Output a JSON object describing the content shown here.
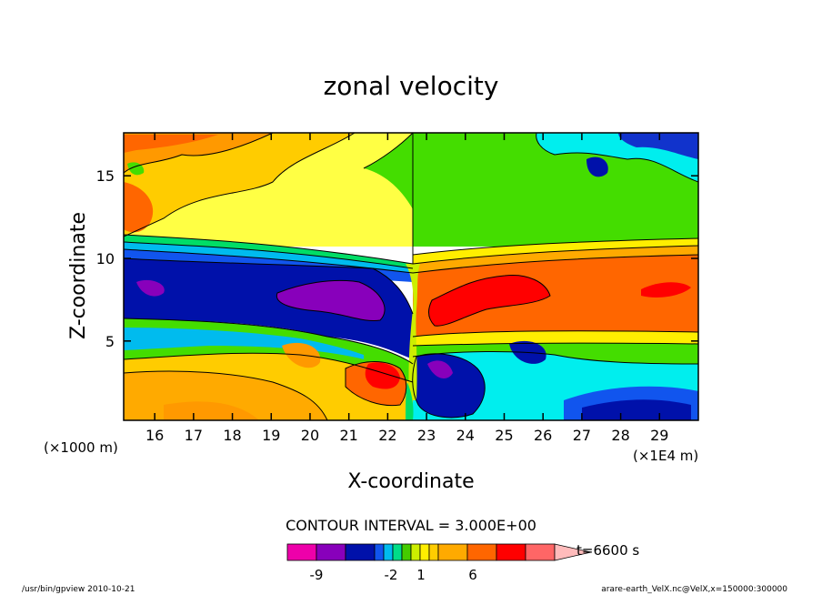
{
  "chart_data": {
    "type": "heatmap",
    "title": "zonal velocity",
    "xlabel": "X-coordinate",
    "ylabel": "Z-coordinate",
    "x_unit_note": "(×1E4 m)",
    "y_unit_note": "(×1000 m)",
    "xlim": [
      15.2,
      30.0
    ],
    "ylim": [
      0.2,
      17.6
    ],
    "x_ticks": [
      16,
      17,
      18,
      19,
      20,
      21,
      22,
      23,
      24,
      25,
      26,
      27,
      28,
      29
    ],
    "y_ticks": [
      5,
      10,
      15
    ],
    "contour_interval_text": "CONTOUR INTERVAL = 3.000E+00",
    "colorbar": {
      "colors": [
        "#ee00aa",
        "#8800bb",
        "#0011aa",
        "#1155ee",
        "#00bbee",
        "#00dd88",
        "#44cc00",
        "#ccee00",
        "#ffee00",
        "#ffcc00",
        "#ffaa00",
        "#ff6600",
        "#ff0000",
        "#ff6666",
        "#ffbbbb"
      ],
      "tick_labels": [
        "-9",
        "-2",
        "1",
        "6"
      ],
      "time_label": "t=6600 s"
    },
    "regions": [
      {
        "name": "upper-left-orange",
        "value": 3,
        "color": "#ff9900"
      },
      {
        "name": "upper-left-yellow",
        "value": 1,
        "color": "#ffff44"
      },
      {
        "name": "upper-right-green",
        "value": -1,
        "color": "#44dd00"
      },
      {
        "name": "mid-left-blue",
        "value": -6,
        "color": "#0011aa"
      },
      {
        "name": "mid-left-purple",
        "value": -8,
        "color": "#8800bb"
      },
      {
        "name": "mid-right-orange",
        "value": 5,
        "color": "#ff6600"
      },
      {
        "name": "mid-right-red",
        "value": 7,
        "color": "#ff0000"
      },
      {
        "name": "lower-right-cyan",
        "value": -3,
        "color": "#00eeee"
      },
      {
        "name": "lower-right-blue",
        "value": -6,
        "color": "#0011aa"
      }
    ]
  },
  "footer": {
    "left": "/usr/bin/gpview   2010-10-21",
    "right": "arare-earth_VelX.nc@VelX,x=150000:300000"
  }
}
